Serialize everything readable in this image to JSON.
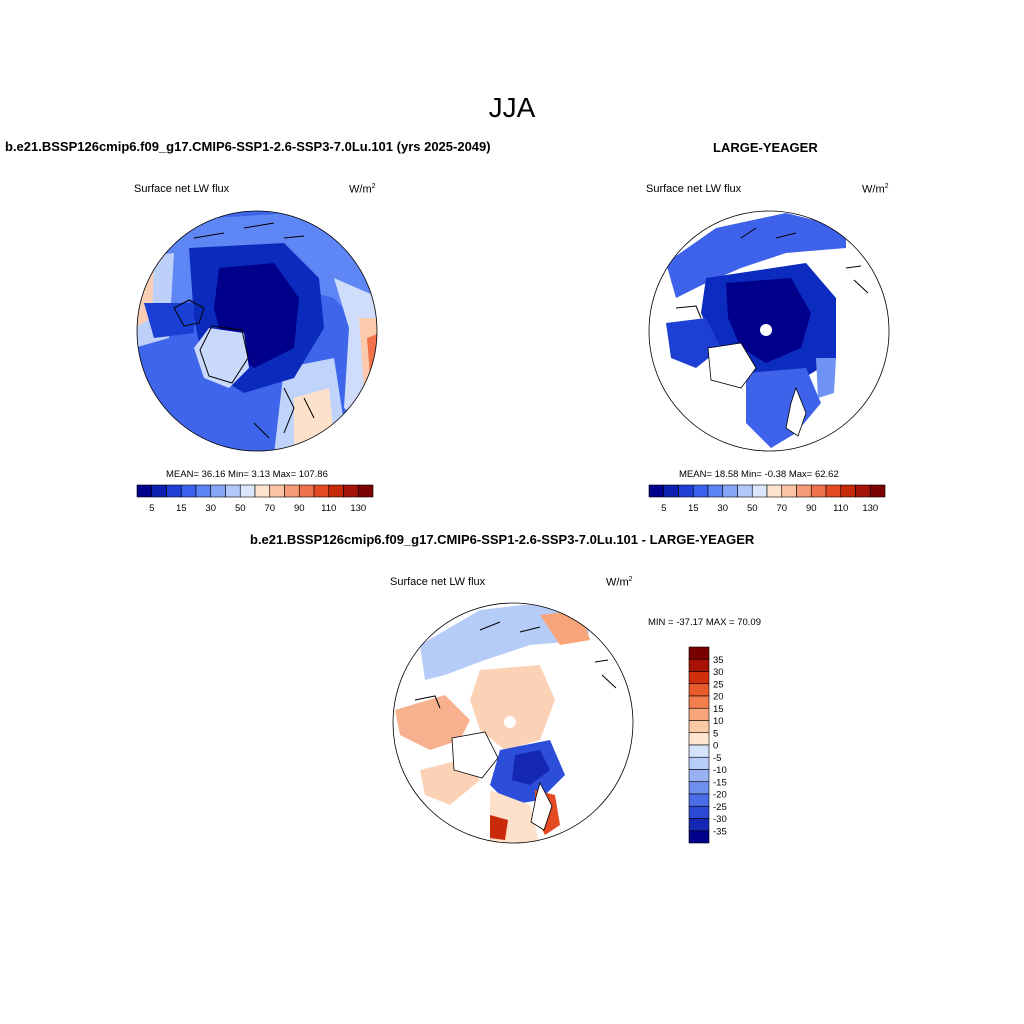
{
  "season": "JJA",
  "panels": {
    "case": {
      "title": "b.e21.BSSP126cmip6.f09_g17.CMIP6-SSP1-2.6-SSP3-7.0Lu.101 (yrs 2025-2049)",
      "variable": "Surface net LW flux",
      "units": "W/m",
      "units_sup": "2",
      "stats": "MEAN=  36.16  Min=   3.13  Max= 107.86"
    },
    "ref": {
      "title": "LARGE-YEAGER",
      "variable": "Surface net LW flux",
      "units": "W/m",
      "units_sup": "2",
      "stats": "MEAN=  18.58  Min=  -0.38  Max=  62.62"
    },
    "diff": {
      "title": "b.e21.BSSP126cmip6.f09_g17.CMIP6-SSP1-2.6-SSP3-7.0Lu.101 - LARGE-YEAGER",
      "variable": "Surface net LW flux",
      "units": "W/m",
      "units_sup": "2",
      "stats": "MIN = -37.17 MAX =  70.09"
    }
  },
  "colorbar_main": {
    "colors": [
      "#00008b",
      "#0b1fb0",
      "#1f3fd6",
      "#3a62ee",
      "#5c84f5",
      "#86a6f7",
      "#b3c8fa",
      "#d9e6fb",
      "#fde4cc",
      "#fbc2a4",
      "#f69b78",
      "#ef724e",
      "#e44a22",
      "#c72a0a",
      "#a31408",
      "#7a0203"
    ],
    "tick_labels": [
      "5",
      "15",
      "30",
      "50",
      "70",
      "90",
      "110",
      "130"
    ]
  },
  "colorbar_diff": {
    "colors": [
      "#7a0000",
      "#a81205",
      "#cf2f0a",
      "#e75b2a",
      "#f2804f",
      "#f8a57a",
      "#fcc9a6",
      "#fee6d0",
      "#d6e4fb",
      "#b7ccf8",
      "#98b1f2",
      "#6f8fee",
      "#4a6ce6",
      "#2a49d6",
      "#1428b4",
      "#00008b"
    ],
    "tick_labels": [
      "35",
      "30",
      "25",
      "20",
      "15",
      "10",
      "5",
      "0",
      "-5",
      "-10",
      "-15",
      "-20",
      "-25",
      "-30",
      "-35"
    ]
  }
}
